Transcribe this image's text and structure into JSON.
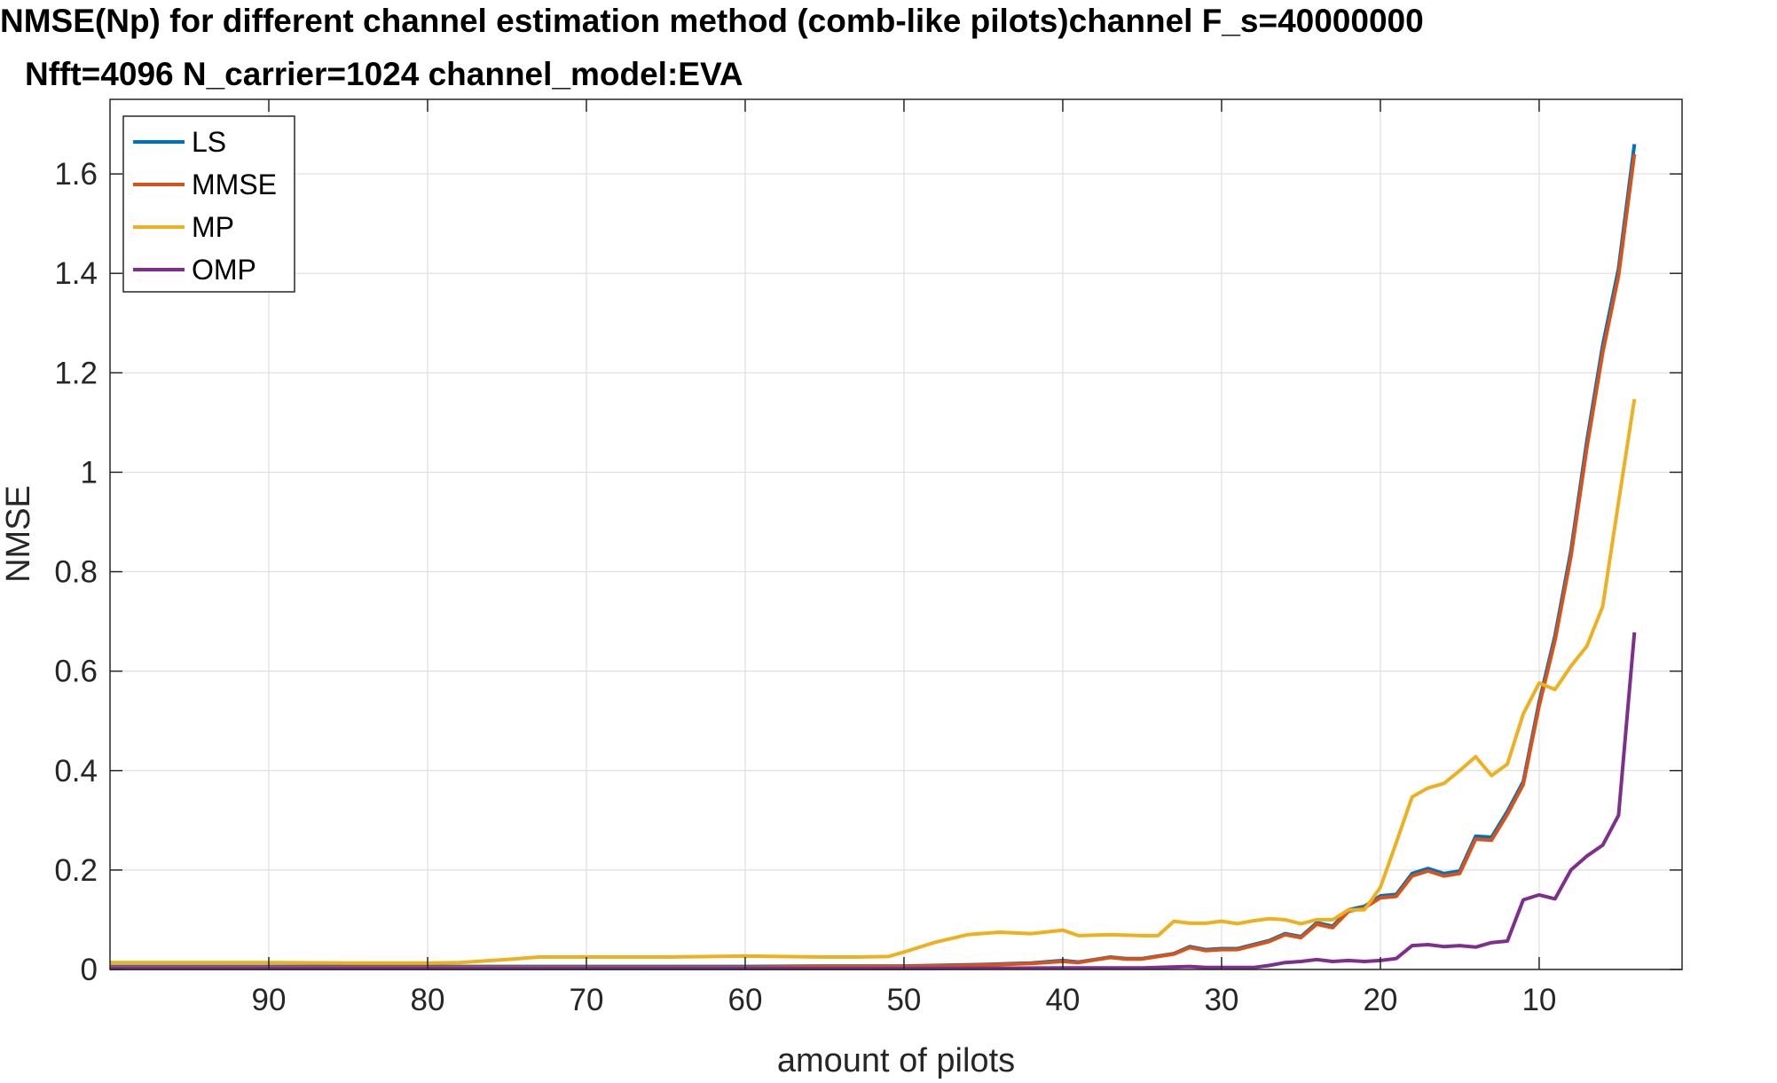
{
  "chart_data": {
    "type": "line",
    "title": "NMSE(Np) for different channel estimation method (comb-like pilots)channel F_s=40000000",
    "subtitle": "Nfft=4096 N_carrier=1024 channel_model:EVA",
    "xlabel": "amount of pilots",
    "ylabel": "NMSE",
    "xlim": [
      100,
      1
    ],
    "ylim": [
      0,
      1.75
    ],
    "x_reversed": true,
    "grid": true,
    "legend_position": "top-left",
    "xticks": [
      "90",
      "80",
      "70",
      "60",
      "50",
      "40",
      "30",
      "20",
      "10"
    ],
    "xtick_values": [
      90,
      80,
      70,
      60,
      50,
      40,
      30,
      20,
      10
    ],
    "yticks": [
      "0",
      "0.2",
      "0.4",
      "0.6",
      "0.8",
      "1",
      "1.2",
      "1.4",
      "1.6"
    ],
    "ytick_values": [
      0,
      0.2,
      0.4,
      0.6,
      0.8,
      1,
      1.2,
      1.4,
      1.6
    ],
    "series": [
      {
        "name": "LS",
        "color": "#0072BD",
        "points": [
          [
            100,
            0.006
          ],
          [
            80,
            0.006
          ],
          [
            70,
            0.006
          ],
          [
            60,
            0.006
          ],
          [
            55,
            0.007
          ],
          [
            50,
            0.007
          ],
          [
            45,
            0.01
          ],
          [
            42,
            0.013
          ],
          [
            40,
            0.018
          ],
          [
            39,
            0.015
          ],
          [
            38,
            0.02
          ],
          [
            37,
            0.025
          ],
          [
            36,
            0.022
          ],
          [
            35,
            0.022
          ],
          [
            34,
            0.027
          ],
          [
            33,
            0.032
          ],
          [
            32,
            0.046
          ],
          [
            31,
            0.04
          ],
          [
            30,
            0.042
          ],
          [
            29,
            0.042
          ],
          [
            28,
            0.05
          ],
          [
            27,
            0.058
          ],
          [
            26,
            0.072
          ],
          [
            25,
            0.066
          ],
          [
            24,
            0.094
          ],
          [
            23,
            0.087
          ],
          [
            22,
            0.12
          ],
          [
            21,
            0.127
          ],
          [
            20,
            0.148
          ],
          [
            19,
            0.151
          ],
          [
            18,
            0.193
          ],
          [
            17,
            0.203
          ],
          [
            16,
            0.193
          ],
          [
            15,
            0.198
          ],
          [
            14,
            0.268
          ],
          [
            13,
            0.266
          ],
          [
            12,
            0.318
          ],
          [
            11,
            0.378
          ],
          [
            10,
            0.538
          ],
          [
            9,
            0.672
          ],
          [
            8,
            0.842
          ],
          [
            7,
            1.062
          ],
          [
            6,
            1.255
          ],
          [
            5,
            1.41
          ],
          [
            4,
            1.66
          ]
        ]
      },
      {
        "name": "MMSE",
        "color": "#D95319",
        "points": [
          [
            100,
            0.004
          ],
          [
            80,
            0.004
          ],
          [
            70,
            0.004
          ],
          [
            60,
            0.004
          ],
          [
            55,
            0.006
          ],
          [
            50,
            0.006
          ],
          [
            45,
            0.009
          ],
          [
            42,
            0.012
          ],
          [
            40,
            0.016
          ],
          [
            39,
            0.014
          ],
          [
            38,
            0.019
          ],
          [
            37,
            0.024
          ],
          [
            36,
            0.021
          ],
          [
            35,
            0.021
          ],
          [
            34,
            0.026
          ],
          [
            33,
            0.031
          ],
          [
            32,
            0.044
          ],
          [
            31,
            0.038
          ],
          [
            30,
            0.04
          ],
          [
            29,
            0.04
          ],
          [
            28,
            0.048
          ],
          [
            27,
            0.056
          ],
          [
            26,
            0.07
          ],
          [
            25,
            0.064
          ],
          [
            24,
            0.091
          ],
          [
            23,
            0.084
          ],
          [
            22,
            0.117
          ],
          [
            21,
            0.124
          ],
          [
            20,
            0.144
          ],
          [
            19,
            0.147
          ],
          [
            18,
            0.188
          ],
          [
            17,
            0.198
          ],
          [
            16,
            0.188
          ],
          [
            15,
            0.193
          ],
          [
            14,
            0.262
          ],
          [
            13,
            0.26
          ],
          [
            12,
            0.312
          ],
          [
            11,
            0.372
          ],
          [
            10,
            0.53
          ],
          [
            9,
            0.662
          ],
          [
            8,
            0.83
          ],
          [
            7,
            1.048
          ],
          [
            6,
            1.24
          ],
          [
            5,
            1.395
          ],
          [
            4,
            1.64
          ]
        ]
      },
      {
        "name": "MP",
        "color": "#EDB120",
        "points": [
          [
            100,
            0.014
          ],
          [
            90,
            0.014
          ],
          [
            85,
            0.013
          ],
          [
            80,
            0.013
          ],
          [
            78,
            0.014
          ],
          [
            75,
            0.02
          ],
          [
            73,
            0.025
          ],
          [
            70,
            0.025
          ],
          [
            65,
            0.025
          ],
          [
            60,
            0.027
          ],
          [
            55,
            0.025
          ],
          [
            53,
            0.025
          ],
          [
            51,
            0.026
          ],
          [
            50,
            0.035
          ],
          [
            48,
            0.055
          ],
          [
            46,
            0.07
          ],
          [
            44,
            0.075
          ],
          [
            42,
            0.072
          ],
          [
            40,
            0.079
          ],
          [
            39,
            0.068
          ],
          [
            37,
            0.07
          ],
          [
            35,
            0.068
          ],
          [
            34,
            0.068
          ],
          [
            33,
            0.097
          ],
          [
            32,
            0.093
          ],
          [
            31,
            0.093
          ],
          [
            30,
            0.097
          ],
          [
            29,
            0.092
          ],
          [
            28,
            0.098
          ],
          [
            27,
            0.102
          ],
          [
            26,
            0.1
          ],
          [
            25,
            0.092
          ],
          [
            24,
            0.1
          ],
          [
            23,
            0.1
          ],
          [
            22,
            0.12
          ],
          [
            21,
            0.12
          ],
          [
            20,
            0.165
          ],
          [
            19,
            0.255
          ],
          [
            18,
            0.347
          ],
          [
            17,
            0.365
          ],
          [
            16,
            0.374
          ],
          [
            15,
            0.4
          ],
          [
            14,
            0.428
          ],
          [
            13,
            0.39
          ],
          [
            12,
            0.413
          ],
          [
            11,
            0.514
          ],
          [
            10,
            0.576
          ],
          [
            9,
            0.563
          ],
          [
            8,
            0.61
          ],
          [
            7,
            0.65
          ],
          [
            6,
            0.73
          ],
          [
            5,
            0.94
          ],
          [
            4,
            1.147
          ]
        ]
      },
      {
        "name": "OMP",
        "color": "#7E2F8E",
        "points": [
          [
            100,
            0.002
          ],
          [
            80,
            0.002
          ],
          [
            60,
            0.002
          ],
          [
            50,
            0.002
          ],
          [
            40,
            0.003
          ],
          [
            35,
            0.003
          ],
          [
            32,
            0.006
          ],
          [
            31,
            0.004
          ],
          [
            28,
            0.004
          ],
          [
            27,
            0.008
          ],
          [
            26,
            0.014
          ],
          [
            25,
            0.016
          ],
          [
            24,
            0.02
          ],
          [
            23,
            0.016
          ],
          [
            22,
            0.018
          ],
          [
            21,
            0.016
          ],
          [
            20,
            0.018
          ],
          [
            19,
            0.022
          ],
          [
            18,
            0.048
          ],
          [
            17,
            0.05
          ],
          [
            16,
            0.046
          ],
          [
            15,
            0.048
          ],
          [
            14,
            0.045
          ],
          [
            13,
            0.054
          ],
          [
            12,
            0.057
          ],
          [
            11,
            0.14
          ],
          [
            10,
            0.15
          ],
          [
            9,
            0.142
          ],
          [
            8,
            0.2
          ],
          [
            7,
            0.228
          ],
          [
            6,
            0.25
          ],
          [
            5,
            0.31
          ],
          [
            4,
            0.678
          ]
        ]
      }
    ]
  }
}
